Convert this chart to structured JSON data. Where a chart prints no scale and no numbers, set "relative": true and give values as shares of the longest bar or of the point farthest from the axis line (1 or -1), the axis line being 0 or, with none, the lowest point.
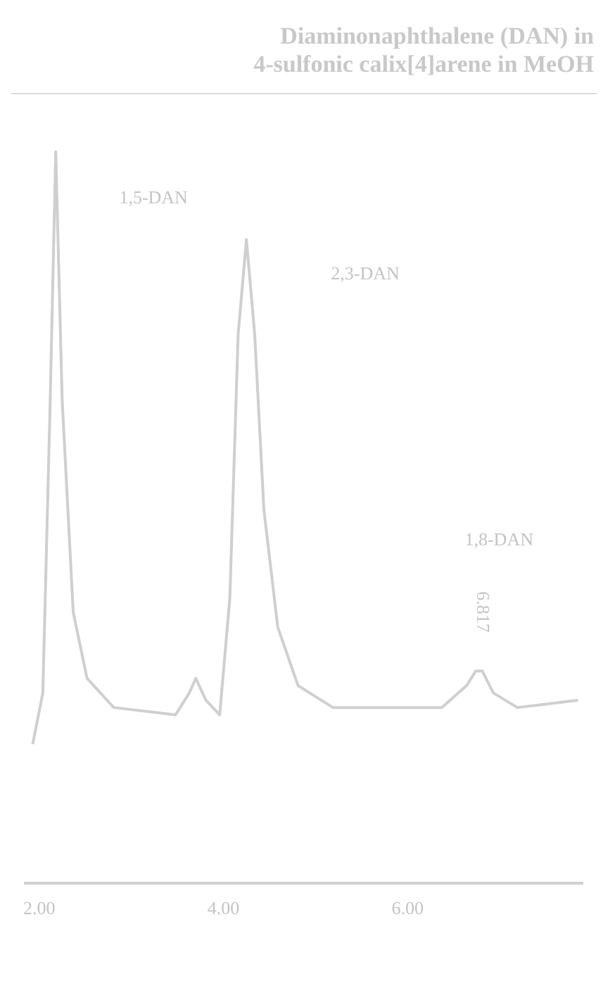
{
  "chart_data": {
    "type": "line",
    "title": "Diaminonaphthalene (DAN) in\n4-sulfonic calix[4]arene in MeOH",
    "relative": true,
    "color": "#cfcfcf",
    "x": [
      1.93,
      2.04,
      2.12,
      2.18,
      2.25,
      2.37,
      2.52,
      2.81,
      3.48,
      3.63,
      3.7,
      3.81,
      3.96,
      4.07,
      4.16,
      4.25,
      4.34,
      4.44,
      4.59,
      4.81,
      5.19,
      6.37,
      6.64,
      6.74,
      6.81,
      6.93,
      7.19,
      7.85
    ],
    "values": [
      0.19,
      0.26,
      0.66,
      1.0,
      0.66,
      0.37,
      0.28,
      0.24,
      0.23,
      0.26,
      0.28,
      0.25,
      0.23,
      0.39,
      0.75,
      0.88,
      0.75,
      0.51,
      0.35,
      0.27,
      0.24,
      0.24,
      0.27,
      0.29,
      0.29,
      0.26,
      0.24,
      0.25
    ],
    "xlim": [
      1.85,
      7.9
    ],
    "xticks": [
      {
        "value": 2,
        "label": "2.00"
      },
      {
        "value": 4,
        "label": "4.00"
      },
      {
        "value": 6,
        "label": "6.00"
      }
    ],
    "annotations": [
      "1,5-DAN",
      "2,3-DAN",
      "1,8-DAN",
      {
        "text": "6.817",
        "x": 6.81,
        "y": 0.29
      }
    ],
    "grid": false,
    "legend": false,
    "marker": "none",
    "line_style": "solid"
  }
}
